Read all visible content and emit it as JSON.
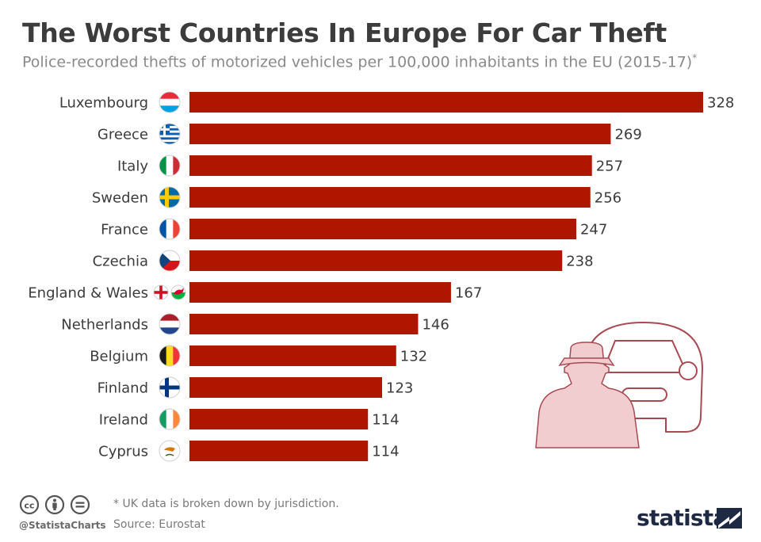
{
  "header": {
    "title": "The Worst Countries In Europe For Car Theft",
    "subtitle": "Police-recorded thefts of motorized vehicles per 100,000 inhabitants in the EU (2015-17)",
    "subtitle_footnote_mark": "*"
  },
  "colors": {
    "bar": "#b01500",
    "illustration": "#f2cdd0",
    "illustration_stroke": "#a84a53",
    "brand": "#1e2a44"
  },
  "chart_data": {
    "type": "bar",
    "orientation": "horizontal",
    "categories": [
      "Luxembourg",
      "Greece",
      "Italy",
      "Sweden",
      "France",
      "Czechia",
      "England & Wales",
      "Netherlands",
      "Belgium",
      "Finland",
      "Ireland",
      "Cyprus"
    ],
    "values": [
      328,
      269,
      257,
      256,
      247,
      238,
      167,
      146,
      132,
      123,
      114,
      114
    ],
    "flags": [
      "luxembourg",
      "greece",
      "italy",
      "sweden",
      "france",
      "czechia",
      "england-wales",
      "netherlands",
      "belgium",
      "finland",
      "ireland",
      "cyprus"
    ],
    "title": "The Worst Countries In Europe For Car Theft",
    "xlabel": "",
    "ylabel": "",
    "xlim": [
      0,
      328
    ],
    "grid": false,
    "data_labels": true
  },
  "footer": {
    "note": "* UK data is broken down by jurisdiction.",
    "source": "Source: Eurostat",
    "handle": "@StatistaCharts",
    "brand": "statista",
    "license_icons": [
      "cc-icon",
      "by-icon",
      "nd-icon"
    ]
  }
}
